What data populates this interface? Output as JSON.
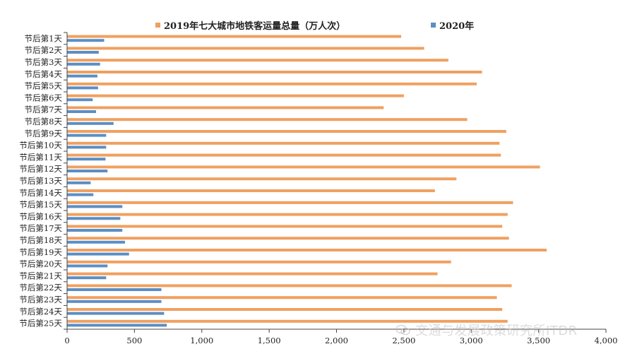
{
  "chart_data": {
    "type": "bar",
    "orientation": "horizontal",
    "categories": [
      "节后第1天",
      "节后第2天",
      "节后第3天",
      "节后第4天",
      "节后第5天",
      "节后第6天",
      "节后第7天",
      "节后第8天",
      "节后第9天",
      "节后第10天",
      "节后第11天",
      "节后第12天",
      "节后第13天",
      "节后第14天",
      "节后第15天",
      "节后第16天",
      "节后第17天",
      "节后第18天",
      "节后第19天",
      "节后第20天",
      "节后第21天",
      "节后第22天",
      "节后第23天",
      "节后第24天",
      "节后第25天"
    ],
    "series": [
      {
        "name": "2019年七大城市地铁客运量总量（万人次）",
        "color": "#f0a060",
        "values": [
          2480,
          2650,
          2830,
          3080,
          3040,
          2500,
          2350,
          2970,
          3260,
          3210,
          3220,
          3510,
          2890,
          2730,
          3310,
          3270,
          3230,
          3280,
          3560,
          2850,
          2750,
          3300,
          3190,
          3230,
          3270
        ]
      },
      {
        "name": "2020年",
        "color": "#5b8ec4",
        "values": [
          275,
          235,
          245,
          225,
          230,
          190,
          215,
          345,
          290,
          290,
          285,
          300,
          175,
          195,
          410,
          395,
          410,
          430,
          460,
          300,
          290,
          700,
          700,
          720,
          740
        ]
      }
    ],
    "xlim": [
      0,
      4000
    ],
    "xticks": [
      0,
      500,
      1000,
      1500,
      2000,
      2500,
      3000,
      3500,
      4000
    ],
    "xtick_labels": [
      "0",
      "500",
      "1,000",
      "1,500",
      "2,000",
      "2,500",
      "3,000",
      "3,500",
      "4,000"
    ],
    "legend_position": "top",
    "grid": false
  },
  "watermark": {
    "text": "交通与发展政策研究所ITDR",
    "icon": "wechat-icon"
  }
}
